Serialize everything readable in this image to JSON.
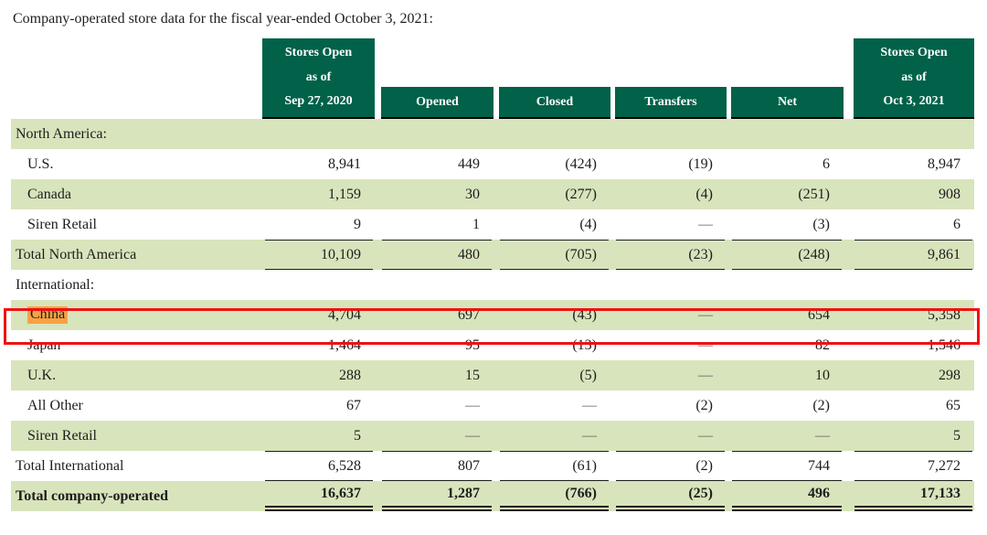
{
  "title": "Company-operated store data for the fiscal year-ended October 3, 2021:",
  "colors": {
    "header_green": "#016149",
    "row_green": "#d8e4bc",
    "highlight_orange": "#f7a243",
    "annotation_red": "#ee1212",
    "text": "#1d1d1d"
  },
  "annotation": {
    "highlighted_row": "China",
    "highlighted_cell_text": "China"
  },
  "table": {
    "columns": [
      {
        "line1": "Stores Open",
        "line2": "as of",
        "line3": "Sep 27, 2020"
      },
      {
        "label": "Opened"
      },
      {
        "label": "Closed"
      },
      {
        "label": "Transfers"
      },
      {
        "label": "Net"
      },
      {
        "line1": "Stores Open",
        "line2": "as of",
        "line3": "Oct 3, 2021"
      }
    ],
    "rows": [
      {
        "label": "North America:",
        "type": "section",
        "shade": true,
        "values": [
          "",
          "",
          "",
          "",
          "",
          ""
        ]
      },
      {
        "label": "U.S.",
        "type": "item",
        "shade": false,
        "values": [
          "8,941",
          "449",
          "(424)",
          "(19)",
          "6",
          "8,947"
        ]
      },
      {
        "label": "Canada",
        "type": "item",
        "shade": true,
        "values": [
          "1,159",
          "30",
          "(277)",
          "(4)",
          "(251)",
          "908"
        ]
      },
      {
        "label": "Siren Retail",
        "type": "item",
        "shade": false,
        "values": [
          "9",
          "1",
          "(4)",
          "—",
          "(3)",
          "6"
        ]
      },
      {
        "label": "Total North America",
        "type": "total",
        "shade": true,
        "values": [
          "10,109",
          "480",
          "(705)",
          "(23)",
          "(248)",
          "9,861"
        ]
      },
      {
        "label": "International:",
        "type": "section",
        "shade": false,
        "values": [
          "",
          "",
          "",
          "",
          "",
          ""
        ]
      },
      {
        "label": "China",
        "type": "item",
        "shade": true,
        "highlight": true,
        "annotated": true,
        "values": [
          "4,704",
          "697",
          "(43)",
          "—",
          "654",
          "5,358"
        ]
      },
      {
        "label": "Japan",
        "type": "item",
        "shade": false,
        "values": [
          "1,464",
          "95",
          "(13)",
          "—",
          "82",
          "1,546"
        ]
      },
      {
        "label": "U.K.",
        "type": "item",
        "shade": true,
        "values": [
          "288",
          "15",
          "(5)",
          "—",
          "10",
          "298"
        ]
      },
      {
        "label": "All Other",
        "type": "item",
        "shade": false,
        "values": [
          "67",
          "—",
          "—",
          "(2)",
          "(2)",
          "65"
        ]
      },
      {
        "label": "Siren Retail",
        "type": "item",
        "shade": true,
        "values": [
          "5",
          "—",
          "—",
          "—",
          "—",
          "5"
        ]
      },
      {
        "label": "Total International",
        "type": "total-light",
        "shade": false,
        "values": [
          "6,528",
          "807",
          "(61)",
          "(2)",
          "744",
          "7,272"
        ]
      },
      {
        "label": "Total company-operated",
        "type": "grand-total",
        "shade": true,
        "values": [
          "16,637",
          "1,287",
          "(766)",
          "(25)",
          "496",
          "17,133"
        ]
      }
    ]
  }
}
